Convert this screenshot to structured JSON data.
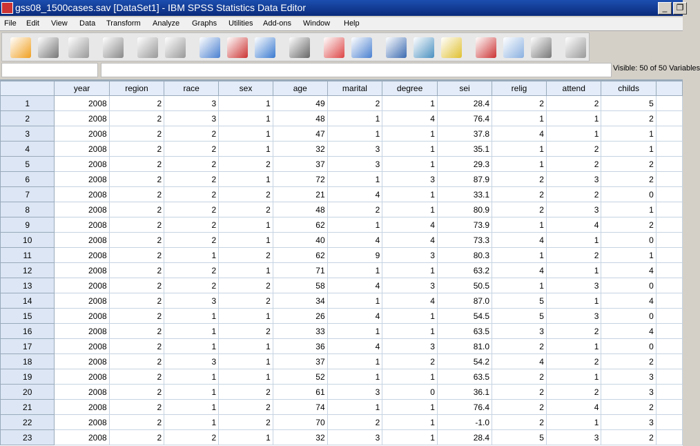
{
  "window": {
    "title": "gss08_1500cases.sav [DataSet1] - IBM SPSS Statistics Data Editor",
    "minimize": "_",
    "restore": "❐"
  },
  "menu": [
    "File",
    "Edit",
    "View",
    "Data",
    "Transform",
    "Analyze",
    "Graphs",
    "Utilities",
    "Add-ons",
    "Window",
    "Help"
  ],
  "toolbar": [
    "open-folder-icon",
    "save-icon",
    "print-icon",
    "dialog-recall-icon",
    "undo-icon",
    "redo-icon",
    "goto-case-icon",
    "goto-variable-icon",
    "variables-icon",
    "find-icon",
    "insert-cases-icon",
    "insert-variable-icon",
    "split-file-icon",
    "weight-cases-icon",
    "select-cases-icon",
    "value-labels-icon",
    "use-sets-icon",
    "show-all-variables-icon",
    "spell-check-icon"
  ],
  "status": {
    "visible": "Visible: 50 of 50 Variables"
  },
  "columns": [
    "year",
    "region",
    "race",
    "sex",
    "age",
    "marital",
    "degree",
    "sei",
    "relig",
    "attend",
    "childs"
  ],
  "rows": [
    [
      "1",
      "2008",
      "2",
      "3",
      "1",
      "49",
      "2",
      "1",
      "28.4",
      "2",
      "2",
      "5"
    ],
    [
      "2",
      "2008",
      "2",
      "3",
      "1",
      "48",
      "1",
      "4",
      "76.4",
      "1",
      "1",
      "2"
    ],
    [
      "3",
      "2008",
      "2",
      "2",
      "1",
      "47",
      "1",
      "1",
      "37.8",
      "4",
      "1",
      "1"
    ],
    [
      "4",
      "2008",
      "2",
      "2",
      "1",
      "32",
      "3",
      "1",
      "35.1",
      "1",
      "2",
      "1"
    ],
    [
      "5",
      "2008",
      "2",
      "2",
      "2",
      "37",
      "3",
      "1",
      "29.3",
      "1",
      "2",
      "2"
    ],
    [
      "6",
      "2008",
      "2",
      "2",
      "1",
      "72",
      "1",
      "3",
      "87.9",
      "2",
      "3",
      "2"
    ],
    [
      "7",
      "2008",
      "2",
      "2",
      "2",
      "21",
      "4",
      "1",
      "33.1",
      "2",
      "2",
      "0"
    ],
    [
      "8",
      "2008",
      "2",
      "2",
      "2",
      "48",
      "2",
      "1",
      "80.9",
      "2",
      "3",
      "1"
    ],
    [
      "9",
      "2008",
      "2",
      "2",
      "1",
      "62",
      "1",
      "4",
      "73.9",
      "1",
      "4",
      "2"
    ],
    [
      "10",
      "2008",
      "2",
      "2",
      "1",
      "40",
      "4",
      "4",
      "73.3",
      "4",
      "1",
      "0"
    ],
    [
      "11",
      "2008",
      "2",
      "1",
      "2",
      "62",
      "9",
      "3",
      "80.3",
      "1",
      "2",
      "1"
    ],
    [
      "12",
      "2008",
      "2",
      "2",
      "1",
      "71",
      "1",
      "1",
      "63.2",
      "4",
      "1",
      "4"
    ],
    [
      "13",
      "2008",
      "2",
      "2",
      "2",
      "58",
      "4",
      "3",
      "50.5",
      "1",
      "3",
      "0"
    ],
    [
      "14",
      "2008",
      "2",
      "3",
      "2",
      "34",
      "1",
      "4",
      "87.0",
      "5",
      "1",
      "4"
    ],
    [
      "15",
      "2008",
      "2",
      "1",
      "1",
      "26",
      "4",
      "1",
      "54.5",
      "5",
      "3",
      "0"
    ],
    [
      "16",
      "2008",
      "2",
      "1",
      "2",
      "33",
      "1",
      "1",
      "63.5",
      "3",
      "2",
      "4"
    ],
    [
      "17",
      "2008",
      "2",
      "1",
      "1",
      "36",
      "4",
      "3",
      "81.0",
      "2",
      "1",
      "0"
    ],
    [
      "18",
      "2008",
      "2",
      "3",
      "1",
      "37",
      "1",
      "2",
      "54.2",
      "4",
      "2",
      "2"
    ],
    [
      "19",
      "2008",
      "2",
      "1",
      "1",
      "52",
      "1",
      "1",
      "63.5",
      "2",
      "1",
      "3"
    ],
    [
      "20",
      "2008",
      "2",
      "1",
      "2",
      "61",
      "3",
      "0",
      "36.1",
      "2",
      "2",
      "3"
    ],
    [
      "21",
      "2008",
      "2",
      "1",
      "2",
      "74",
      "1",
      "1",
      "76.4",
      "2",
      "4",
      "2"
    ],
    [
      "22",
      "2008",
      "2",
      "1",
      "2",
      "70",
      "2",
      "1",
      "-1.0",
      "2",
      "1",
      "3"
    ],
    [
      "23",
      "2008",
      "2",
      "2",
      "1",
      "32",
      "3",
      "1",
      "28.4",
      "5",
      "3",
      "2"
    ]
  ]
}
